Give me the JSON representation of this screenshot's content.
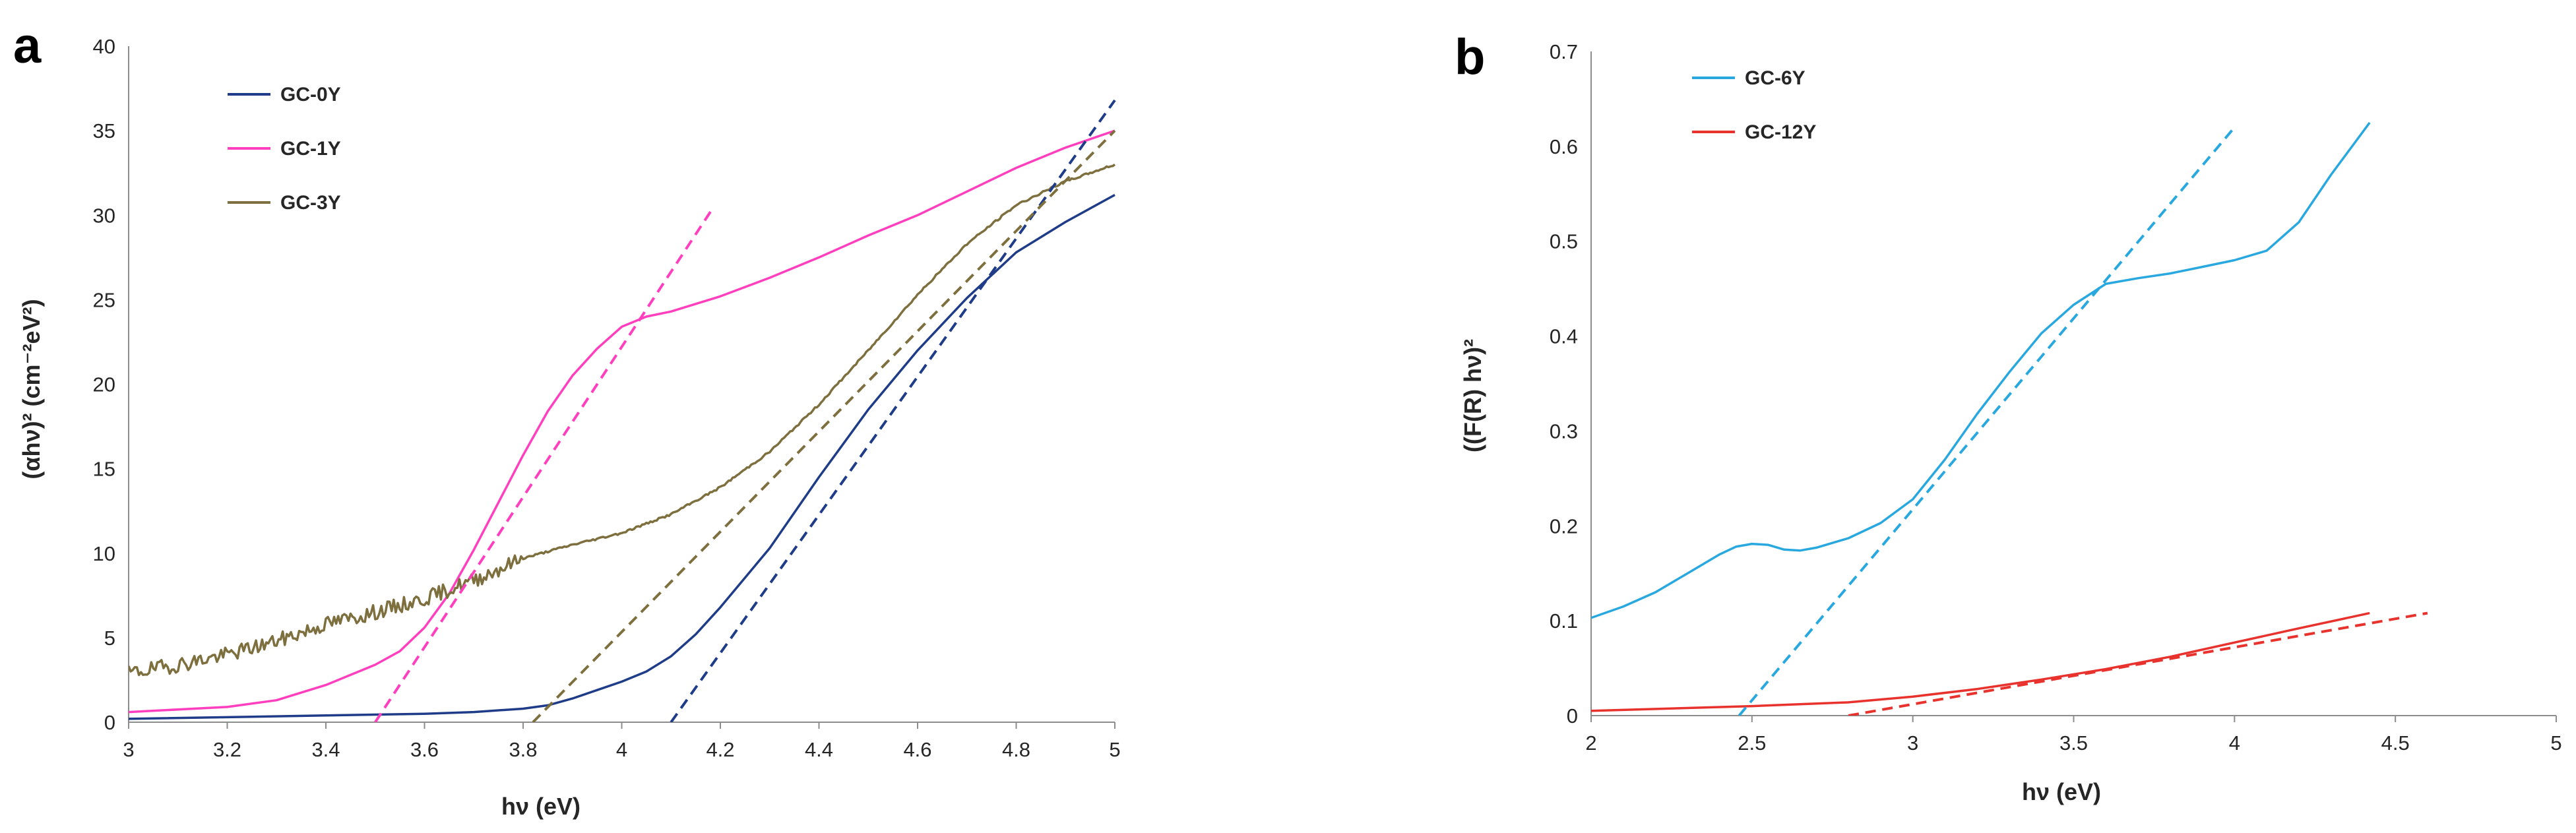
{
  "chart_data": [
    {
      "panel": "a",
      "type": "line",
      "title": "",
      "xlabel": "hν (eV)",
      "ylabel": "(αhν)² (cm⁻²eV²)",
      "xlim": [
        3,
        5
      ],
      "ylim": [
        0,
        40
      ],
      "xticks": [
        3,
        3.2,
        3.4,
        3.6,
        3.8,
        4,
        4.2,
        4.4,
        4.6,
        4.8,
        5
      ],
      "xtick_labels": [
        "3",
        "3.2",
        "3.4",
        "3.6",
        "3.8",
        "4",
        "4.2",
        "4.4",
        "4.6",
        "4.8",
        "5"
      ],
      "yticks": [
        0,
        5,
        10,
        15,
        20,
        25,
        30,
        35,
        40
      ],
      "ytick_labels": [
        "0",
        "5",
        "10",
        "15",
        "20",
        "25",
        "30",
        "35",
        "40"
      ],
      "legend_position": "top-left",
      "series": [
        {
          "name": "GC-0Y",
          "color": "#1f3c88",
          "style": "solid",
          "noise": false,
          "x": [
            3,
            3.4,
            3.6,
            3.7,
            3.8,
            3.85,
            3.9,
            3.95,
            4.0,
            4.05,
            4.1,
            4.15,
            4.2,
            4.3,
            4.4,
            4.5,
            4.6,
            4.7,
            4.8,
            4.9,
            5.0
          ],
          "y": [
            0.2,
            0.4,
            0.5,
            0.6,
            0.8,
            1.0,
            1.4,
            1.9,
            2.4,
            3.0,
            3.9,
            5.2,
            6.8,
            10.3,
            14.5,
            18.5,
            22.0,
            25.1,
            27.8,
            29.6,
            31.2
          ]
        },
        {
          "name": "GC-1Y",
          "color": "#ff3fbe",
          "style": "solid",
          "noise": false,
          "x": [
            3,
            3.2,
            3.3,
            3.4,
            3.45,
            3.5,
            3.55,
            3.6,
            3.65,
            3.7,
            3.75,
            3.8,
            3.85,
            3.9,
            3.95,
            4.0,
            4.05,
            4.1,
            4.2,
            4.3,
            4.4,
            4.5,
            4.6,
            4.7,
            4.8,
            4.9,
            5.0
          ],
          "y": [
            0.6,
            0.9,
            1.3,
            2.2,
            2.8,
            3.4,
            4.2,
            5.6,
            7.6,
            10.2,
            13.0,
            15.8,
            18.4,
            20.5,
            22.1,
            23.4,
            24.0,
            24.3,
            25.2,
            26.3,
            27.5,
            28.8,
            30.0,
            31.4,
            32.8,
            34.0,
            35.0
          ]
        },
        {
          "name": "GC-3Y",
          "color": "#7d6f3e",
          "style": "solid",
          "noise": true,
          "x": [
            3,
            3.1,
            3.2,
            3.3,
            3.4,
            3.5,
            3.6,
            3.7,
            3.8,
            3.9,
            4.0,
            4.1,
            4.2,
            4.3,
            4.4,
            4.5,
            4.6,
            4.7,
            4.8,
            4.9,
            5.0
          ],
          "y": [
            2.9,
            3.4,
            4.0,
            4.8,
            5.8,
            6.5,
            7.3,
            8.4,
            9.7,
            10.5,
            11.2,
            12.3,
            13.9,
            16.0,
            18.8,
            22.0,
            25.3,
            28.3,
            30.6,
            32.0,
            33.0
          ]
        },
        {
          "name": "GC-0Y fit",
          "color": "#1f3c88",
          "style": "dashed",
          "noise": false,
          "x": [
            4.1,
            5.0
          ],
          "y": [
            0,
            36.8
          ]
        },
        {
          "name": "GC-1Y fit",
          "color": "#ff3fbe",
          "style": "dashed",
          "noise": false,
          "x": [
            3.5,
            4.18
          ],
          "y": [
            0,
            30.2
          ]
        },
        {
          "name": "GC-3Y fit",
          "color": "#7d6f3e",
          "style": "dashed",
          "noise": false,
          "x": [
            3.82,
            5.0
          ],
          "y": [
            0,
            35.0
          ]
        }
      ]
    },
    {
      "panel": "b",
      "type": "line",
      "title": "",
      "xlabel": "hν (eV)",
      "ylabel": "((F(R) hν)²",
      "xlim": [
        2,
        5
      ],
      "ylim": [
        0,
        0.7
      ],
      "xticks": [
        2,
        2.5,
        3,
        3.5,
        4,
        4.5,
        5
      ],
      "xtick_labels": [
        "2",
        "2.5",
        "3",
        "3.5",
        "4",
        "4.5",
        "5"
      ],
      "yticks": [
        0,
        0.1,
        0.2,
        0.3,
        0.4,
        0.5,
        0.6,
        0.7
      ],
      "ytick_labels": [
        "0",
        "0.1",
        "0.2",
        "0.3",
        "0.4",
        "0.5",
        "0.6",
        "0.7"
      ],
      "legend_position": "top-left",
      "series": [
        {
          "name": "GC-6Y",
          "color": "#29a8e0",
          "style": "solid",
          "noise": false,
          "x": [
            2.0,
            2.1,
            2.2,
            2.3,
            2.4,
            2.45,
            2.5,
            2.55,
            2.6,
            2.65,
            2.7,
            2.8,
            2.9,
            3.0,
            3.1,
            3.2,
            3.3,
            3.4,
            3.5,
            3.6,
            3.7,
            3.8,
            3.9,
            4.0,
            4.1,
            4.2,
            4.3,
            4.42
          ],
          "y": [
            0.103,
            0.115,
            0.13,
            0.15,
            0.17,
            0.178,
            0.181,
            0.18,
            0.175,
            0.174,
            0.177,
            0.187,
            0.203,
            0.228,
            0.27,
            0.318,
            0.362,
            0.403,
            0.433,
            0.455,
            0.461,
            0.466,
            0.473,
            0.48,
            0.49,
            0.52,
            0.57,
            0.625
          ]
        },
        {
          "name": "GC-12Y",
          "color": "#e8322d",
          "style": "solid",
          "noise": false,
          "x": [
            2.0,
            2.5,
            2.8,
            3.0,
            3.2,
            3.4,
            3.6,
            3.8,
            4.0,
            4.2,
            4.42
          ],
          "y": [
            0.005,
            0.01,
            0.014,
            0.02,
            0.028,
            0.038,
            0.049,
            0.062,
            0.077,
            0.092,
            0.108
          ]
        },
        {
          "name": "GC-6Y fit",
          "color": "#29a8e0",
          "style": "dashed",
          "noise": false,
          "x": [
            2.46,
            4.0
          ],
          "y": [
            0,
            0.62
          ]
        },
        {
          "name": "GC-12Y fit",
          "color": "#e8322d",
          "style": "dashed",
          "noise": false,
          "x": [
            2.8,
            4.6
          ],
          "y": [
            0,
            0.108
          ]
        }
      ]
    }
  ]
}
